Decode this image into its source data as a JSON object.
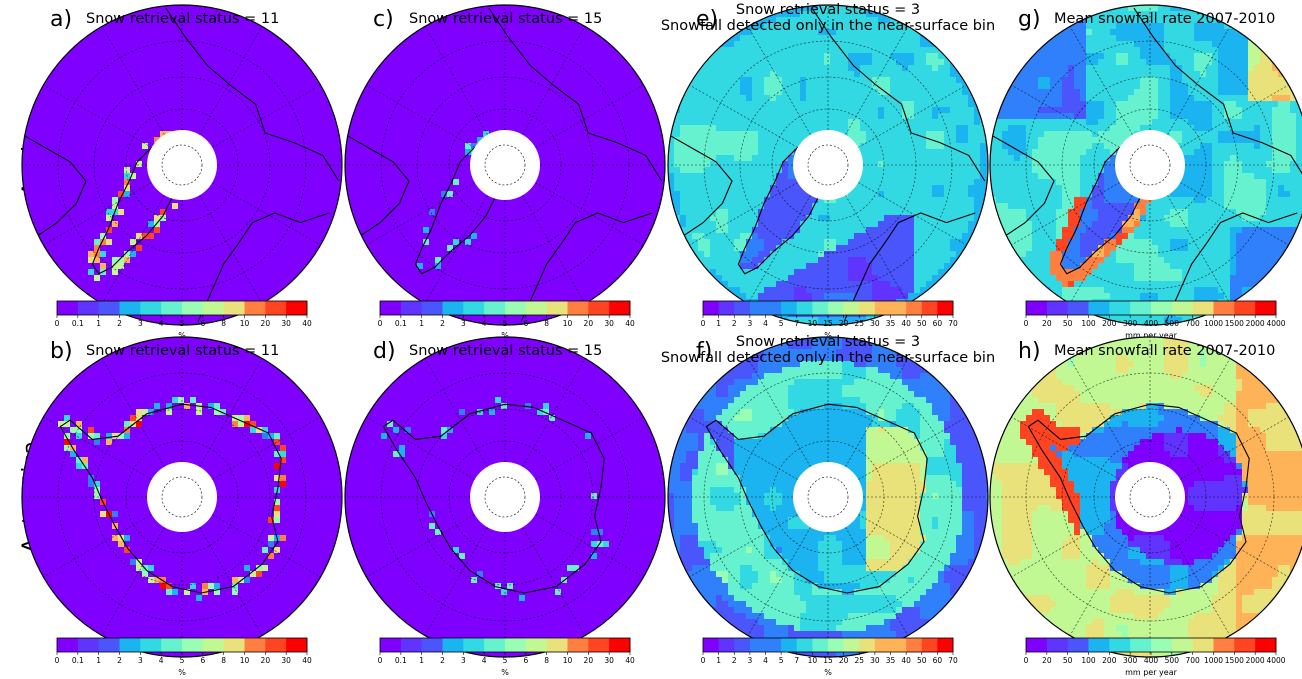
{
  "rows": [
    {
      "label": "Arctic",
      "hemisphere": "north"
    },
    {
      "label": "Antarctica",
      "hemisphere": "south"
    }
  ],
  "columns": [
    {
      "letters": [
        "a)",
        "b)"
      ],
      "title": [
        "Snow retrieval status = 11"
      ],
      "pattern": "status11",
      "colorbar": {
        "ticks": [
          "0",
          "0.1",
          "1",
          "2",
          "3",
          "4",
          "5",
          "6",
          "8",
          "10",
          "20",
          "30",
          "40"
        ],
        "unit": "%"
      }
    },
    {
      "letters": [
        "c)",
        "d)"
      ],
      "title": [
        "Snow retrieval status = 15"
      ],
      "pattern": "status15",
      "colorbar": {
        "ticks": [
          "0",
          "0.1",
          "1",
          "2",
          "3",
          "4",
          "5",
          "6",
          "8",
          "10",
          "20",
          "30",
          "40"
        ],
        "unit": "%"
      }
    },
    {
      "letters": [
        "e)",
        "f)"
      ],
      "title": [
        "Snow retrieval status = 3",
        "Snowfall detected only in the near-surface bin"
      ],
      "pattern": "status3",
      "colorbar": {
        "ticks": [
          "0",
          "1",
          "2",
          "3",
          "4",
          "5",
          "7",
          "10",
          "15",
          "20",
          "25",
          "30",
          "35",
          "40",
          "50",
          "60",
          "70"
        ],
        "unit": "%"
      }
    },
    {
      "letters": [
        "g)",
        "h)"
      ],
      "title": [
        "Mean snowfall rate 2007-2010"
      ],
      "pattern": "snowfall",
      "colorbar": {
        "ticks": [
          "0",
          "20",
          "50",
          "100",
          "200",
          "300",
          "400",
          "500",
          "700",
          "1000",
          "1500",
          "2000",
          "4000"
        ],
        "unit": "mm per year"
      }
    }
  ],
  "colors": {
    "colormap": [
      "#7f00ff",
      "#6033fe",
      "#4a55fc",
      "#2f80fa",
      "#1cb4f0",
      "#33d9e2",
      "#66f2cf",
      "#99fdb4",
      "#c2f894",
      "#e9e17a",
      "#ffb359",
      "#ff7f40",
      "#ff4421",
      "#ff0000"
    ],
    "coastline": "#000000",
    "grid": "#000000",
    "pole_hole": "#ffffff"
  }
}
